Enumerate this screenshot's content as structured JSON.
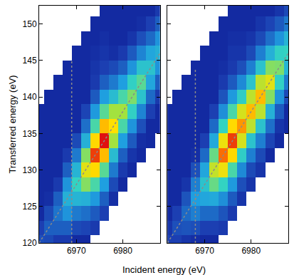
{
  "chart_data": [
    {
      "type": "heatmap",
      "ylabel": "Transferred energy (eV)",
      "xlabel": "Incident energy (eV)",
      "x": [
        6962,
        6964,
        6966,
        6968,
        6970,
        6972,
        6974,
        6976,
        6978,
        6980,
        6982,
        6984,
        6986,
        6988
      ],
      "y": [
        120,
        122,
        124,
        126,
        128,
        130,
        132,
        134,
        136,
        138,
        140,
        142,
        144,
        146,
        148,
        150,
        152
      ],
      "z": [
        [
          0.15,
          0.14,
          0.11,
          0.11,
          0.08,
          0.08,
          null,
          null,
          null,
          null,
          null,
          null,
          null,
          null
        ],
        [
          0.12,
          0.18,
          0.18,
          0.18,
          0.14,
          0.13,
          0.11,
          null,
          null,
          null,
          null,
          null,
          null,
          null
        ],
        [
          0.08,
          0.14,
          0.22,
          0.28,
          0.23,
          0.21,
          0.17,
          0.12,
          null,
          null,
          null,
          null,
          null,
          null
        ],
        [
          0.08,
          0.09,
          0.18,
          0.35,
          0.36,
          0.35,
          0.29,
          0.18,
          0.09,
          null,
          null,
          null,
          null,
          null
        ],
        [
          0.08,
          0.08,
          0.11,
          0.28,
          0.45,
          0.56,
          0.48,
          0.3,
          0.14,
          0.08,
          null,
          null,
          null,
          null
        ],
        [
          0.08,
          0.08,
          0.08,
          0.18,
          0.36,
          0.7,
          0.76,
          0.5,
          0.23,
          0.11,
          0.08,
          null,
          null,
          null
        ],
        [
          0.08,
          0.08,
          0.08,
          0.11,
          0.23,
          0.56,
          0.95,
          0.8,
          0.38,
          0.18,
          0.1,
          0.08,
          null,
          null
        ],
        [
          0.08,
          0.08,
          0.08,
          0.08,
          0.14,
          0.35,
          0.76,
          1,
          0.6,
          0.3,
          0.17,
          0.09,
          0.08,
          null
        ],
        [
          0.08,
          0.08,
          0.08,
          0.08,
          0.08,
          0.21,
          0.48,
          0.8,
          0.75,
          0.48,
          0.28,
          0.15,
          0.08,
          0.08
        ],
        [
          0.08,
          0.08,
          0.08,
          0.08,
          0.08,
          0.13,
          0.29,
          0.5,
          0.6,
          0.6,
          0.44,
          0.25,
          0.12,
          0.08
        ],
        [
          null,
          0.08,
          0.08,
          0.08,
          0.08,
          0.08,
          0.17,
          0.3,
          0.38,
          0.48,
          0.55,
          0.4,
          0.2,
          0.11
        ],
        [
          null,
          null,
          0.08,
          0.08,
          0.08,
          0.08,
          0.11,
          0.18,
          0.23,
          0.3,
          0.44,
          0.5,
          0.32,
          0.18
        ],
        [
          null,
          null,
          null,
          0.08,
          0.08,
          0.08,
          0.1,
          0.12,
          0.14,
          0.18,
          0.28,
          0.4,
          0.4,
          0.28
        ],
        [
          null,
          null,
          null,
          null,
          0.08,
          0.08,
          0.09,
          0.1,
          0.09,
          0.11,
          0.17,
          0.25,
          0.32,
          0.35
        ],
        [
          null,
          null,
          null,
          null,
          null,
          0.08,
          0.08,
          0.09,
          0.08,
          0.08,
          0.1,
          0.15,
          0.2,
          0.28
        ],
        [
          null,
          null,
          null,
          null,
          null,
          null,
          0.08,
          0.08,
          0.08,
          0.08,
          0.08,
          0.09,
          0.12,
          0.18
        ],
        [
          null,
          null,
          null,
          null,
          null,
          null,
          null,
          0.08,
          0.08,
          0.08,
          0.08,
          0.08,
          0.08,
          0.11
        ]
      ],
      "zlim": [
        0,
        1
      ],
      "xlim": [
        6962,
        6988
      ],
      "ylim": [
        120,
        152.5
      ],
      "xticks": [
        6970,
        6980
      ],
      "yticks": [
        120,
        125,
        130,
        135,
        140,
        145,
        150
      ],
      "series": [
        {
          "type": "line",
          "line_style": "dotted",
          "color": "#8a8a8a",
          "x": [
            6962,
            6988
          ],
          "y": [
            120,
            146
          ]
        },
        {
          "type": "line",
          "line_style": "dotted",
          "color": "#8a8a8a",
          "x": [
            6969,
            6969
          ],
          "y": [
            120,
            145
          ]
        }
      ]
    },
    {
      "type": "heatmap",
      "tick_labels": "x",
      "x": [
        6962,
        6964,
        6966,
        6968,
        6970,
        6972,
        6974,
        6976,
        6978,
        6980,
        6982,
        6984,
        6986,
        6988
      ],
      "y": [
        120,
        122,
        124,
        126,
        128,
        130,
        132,
        134,
        136,
        138,
        140,
        142,
        144,
        146,
        148,
        150,
        152
      ],
      "z": [
        [
          0.12,
          0.12,
          0.1,
          0.09,
          0.08,
          0.08,
          null,
          null,
          null,
          null,
          null,
          null,
          null,
          null
        ],
        [
          0.1,
          0.15,
          0.16,
          0.15,
          0.12,
          0.12,
          0.11,
          null,
          null,
          null,
          null,
          null,
          null,
          null
        ],
        [
          0.08,
          0.12,
          0.2,
          0.24,
          0.2,
          0.2,
          0.16,
          0.11,
          null,
          null,
          null,
          null,
          null,
          null
        ],
        [
          0.08,
          0.08,
          0.16,
          0.3,
          0.32,
          0.33,
          0.27,
          0.17,
          0.1,
          null,
          null,
          null,
          null,
          null
        ],
        [
          0.08,
          0.08,
          0.1,
          0.24,
          0.4,
          0.52,
          0.45,
          0.29,
          0.15,
          0.1,
          null,
          null,
          null,
          null
        ],
        [
          0.08,
          0.08,
          0.08,
          0.15,
          0.32,
          0.65,
          0.72,
          0.48,
          0.26,
          0.14,
          0.1,
          null,
          null,
          null
        ],
        [
          0.08,
          0.08,
          0.08,
          0.09,
          0.2,
          0.52,
          0.9,
          0.76,
          0.43,
          0.24,
          0.14,
          0.08,
          null,
          null
        ],
        [
          0.08,
          0.08,
          0.08,
          0.08,
          0.12,
          0.33,
          0.72,
          0.95,
          0.68,
          0.4,
          0.24,
          0.13,
          0.08,
          null
        ],
        [
          0.08,
          0.08,
          0.08,
          0.08,
          0.08,
          0.2,
          0.45,
          0.76,
          0.85,
          0.64,
          0.4,
          0.21,
          0.1,
          0.08
        ],
        [
          0.08,
          0.08,
          0.08,
          0.08,
          0.08,
          0.12,
          0.27,
          0.48,
          0.68,
          0.8,
          0.64,
          0.35,
          0.17,
          0.08
        ],
        [
          null,
          0.08,
          0.08,
          0.08,
          0.08,
          0.08,
          0.16,
          0.29,
          0.43,
          0.64,
          0.8,
          0.56,
          0.28,
          0.14
        ],
        [
          null,
          null,
          0.08,
          0.08,
          0.08,
          0.08,
          0.11,
          0.17,
          0.26,
          0.4,
          0.64,
          0.7,
          0.44,
          0.23
        ],
        [
          null,
          null,
          null,
          0.08,
          0.08,
          0.08,
          0.09,
          0.11,
          0.15,
          0.24,
          0.4,
          0.56,
          0.55,
          0.36
        ],
        [
          null,
          null,
          null,
          null,
          0.08,
          0.08,
          0.08,
          0.1,
          0.1,
          0.14,
          0.24,
          0.35,
          0.44,
          0.45
        ],
        [
          null,
          null,
          null,
          null,
          null,
          0.08,
          0.08,
          0.09,
          0.09,
          0.1,
          0.14,
          0.21,
          0.28,
          0.36
        ],
        [
          null,
          null,
          null,
          null,
          null,
          null,
          0.08,
          0.08,
          0.08,
          0.08,
          0.1,
          0.13,
          0.17,
          0.23
        ],
        [
          null,
          null,
          null,
          null,
          null,
          null,
          null,
          0.08,
          0.08,
          0.08,
          0.08,
          0.08,
          0.1,
          0.14
        ]
      ],
      "zlim": [
        0,
        1
      ],
      "xlim": [
        6962,
        6988
      ],
      "ylim": [
        120,
        152.5
      ],
      "xticks": [
        6970,
        6980
      ],
      "yticks": [
        120,
        125,
        130,
        135,
        140,
        145,
        150
      ],
      "series": [
        {
          "type": "line",
          "line_style": "dotted",
          "color": "#8a8a8a",
          "x": [
            6962,
            6988
          ],
          "y": [
            120,
            146
          ]
        },
        {
          "type": "line",
          "line_style": "dotted",
          "color": "#8a8a8a",
          "x": [
            6968,
            6968
          ],
          "y": [
            120,
            144
          ]
        }
      ]
    }
  ]
}
